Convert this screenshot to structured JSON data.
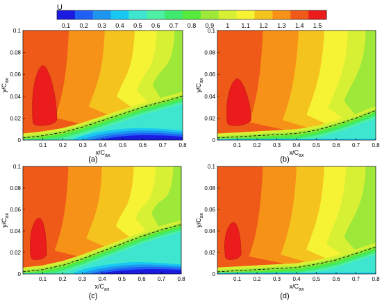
{
  "colorbar": {
    "label": "U",
    "ticks": [
      "0.1",
      "0.2",
      "0.3",
      "0.4",
      "0.5",
      "0.6",
      "0.7",
      "0.8",
      "0.9",
      "1",
      "1.1",
      "1.2",
      "1.3",
      "1.4",
      "1.5"
    ],
    "colors": [
      "#1a1ae0",
      "#1f60f5",
      "#1e96f0",
      "#18c8f2",
      "#3fe6cf",
      "#4ff0a5",
      "#40ea6e",
      "#55ea3c",
      "#9ee83a",
      "#d8f034",
      "#f6f335",
      "#f5c31e",
      "#f79218",
      "#f05a18",
      "#ea1c1c"
    ]
  },
  "chart_data": [
    {
      "panel_label": "(a)",
      "type": "contour",
      "xlabel": "x/C_ax",
      "ylabel": "y/C_ax",
      "xlim": [
        0,
        0.8
      ],
      "ylim": [
        0,
        0.1
      ],
      "xticks": [
        "0.1",
        "0.2",
        "0.3",
        "0.4",
        "0.5",
        "0.6",
        "0.7",
        "0.8"
      ],
      "yticks": [
        "0",
        "0.02",
        "0.04",
        "0.06",
        "0.08",
        "0.1"
      ],
      "dashed_line": {
        "x": [
          0.0,
          0.1,
          0.2,
          0.3,
          0.4,
          0.5,
          0.6,
          0.7,
          0.8
        ],
        "y": [
          0.002,
          0.004,
          0.007,
          0.012,
          0.018,
          0.024,
          0.03,
          0.035,
          0.04
        ]
      },
      "core_contour": {
        "x": [
          0.05,
          0.1,
          0.17
        ],
        "y_top": 0.068,
        "y_bottom": 0.013
      },
      "bands_at_top": {
        "x": [
          0.23,
          0.41,
          0.56,
          0.67,
          0.76
        ]
      },
      "low_speed_region": {
        "x_range": [
          0.3,
          0.7
        ],
        "min_U": 0.1
      }
    },
    {
      "panel_label": "(b)",
      "type": "contour",
      "xlabel": "x/C_ax",
      "ylabel": "y/C_ax",
      "xlim": [
        0,
        0.8
      ],
      "ylim": [
        0,
        0.1
      ],
      "xticks": [
        "0.1",
        "0.2",
        "0.3",
        "0.4",
        "0.5",
        "0.6",
        "0.7",
        "0.8"
      ],
      "yticks": [
        "0",
        "0.02",
        "0.04",
        "0.06",
        "0.08",
        "0.1"
      ],
      "dashed_line": {
        "x": [
          0.0,
          0.1,
          0.2,
          0.3,
          0.4,
          0.5,
          0.6,
          0.7,
          0.8
        ],
        "y": [
          0.002,
          0.003,
          0.004,
          0.005,
          0.006,
          0.009,
          0.014,
          0.02,
          0.027
        ]
      },
      "core_contour": {
        "x": [
          0.05,
          0.1,
          0.17
        ],
        "y_top": 0.056,
        "y_bottom": 0.013
      },
      "bands_at_top": {
        "x": [
          0.23,
          0.41,
          0.54,
          0.66,
          0.75
        ]
      },
      "low_speed_region": null
    },
    {
      "panel_label": "(c)",
      "type": "contour",
      "xlabel": "x/C_ax",
      "ylabel": "y/C_ax",
      "xlim": [
        0,
        0.8
      ],
      "ylim": [
        0,
        0.1
      ],
      "xticks": [
        "0.1",
        "0.2",
        "0.3",
        "0.4",
        "0.5",
        "0.6",
        "0.7",
        "0.8"
      ],
      "yticks": [
        "0",
        "0.02",
        "0.04",
        "0.06",
        "0.08",
        "0.1"
      ],
      "dashed_line": {
        "x": [
          0.0,
          0.1,
          0.2,
          0.3,
          0.4,
          0.5,
          0.6,
          0.7,
          0.8
        ],
        "y": [
          0.002,
          0.004,
          0.008,
          0.014,
          0.021,
          0.028,
          0.035,
          0.041,
          0.046
        ]
      },
      "core_contour": {
        "x": [
          0.04,
          0.08,
          0.12
        ],
        "y_top": 0.052,
        "y_bottom": 0.013
      },
      "bands_at_top": {
        "x": [
          0.23,
          0.4,
          0.56,
          0.67,
          0.76
        ]
      },
      "low_speed_region": {
        "x_range": [
          0.3,
          0.8
        ],
        "min_U": 0.1
      }
    },
    {
      "panel_label": "(d)",
      "type": "contour",
      "xlabel": "x/C_ax",
      "ylabel": "y/C_ax",
      "xlim": [
        0,
        0.8
      ],
      "ylim": [
        0,
        0.1
      ],
      "xticks": [
        "0.1",
        "0.2",
        "0.3",
        "0.4",
        "0.5",
        "0.6",
        "0.7",
        "0.8"
      ],
      "yticks": [
        "0",
        "0.02",
        "0.04",
        "0.06",
        "0.08",
        "0.1"
      ],
      "dashed_line": {
        "x": [
          0.0,
          0.1,
          0.2,
          0.3,
          0.4,
          0.5,
          0.6,
          0.7,
          0.8
        ],
        "y": [
          0.002,
          0.003,
          0.004,
          0.005,
          0.006,
          0.009,
          0.013,
          0.019,
          0.025
        ]
      },
      "core_contour": {
        "x": [
          0.04,
          0.08,
          0.12
        ],
        "y_top": 0.048,
        "y_bottom": 0.013
      },
      "bands_at_top": {
        "x": [
          0.23,
          0.4,
          0.54,
          0.65,
          0.75
        ]
      },
      "low_speed_region": null
    }
  ]
}
